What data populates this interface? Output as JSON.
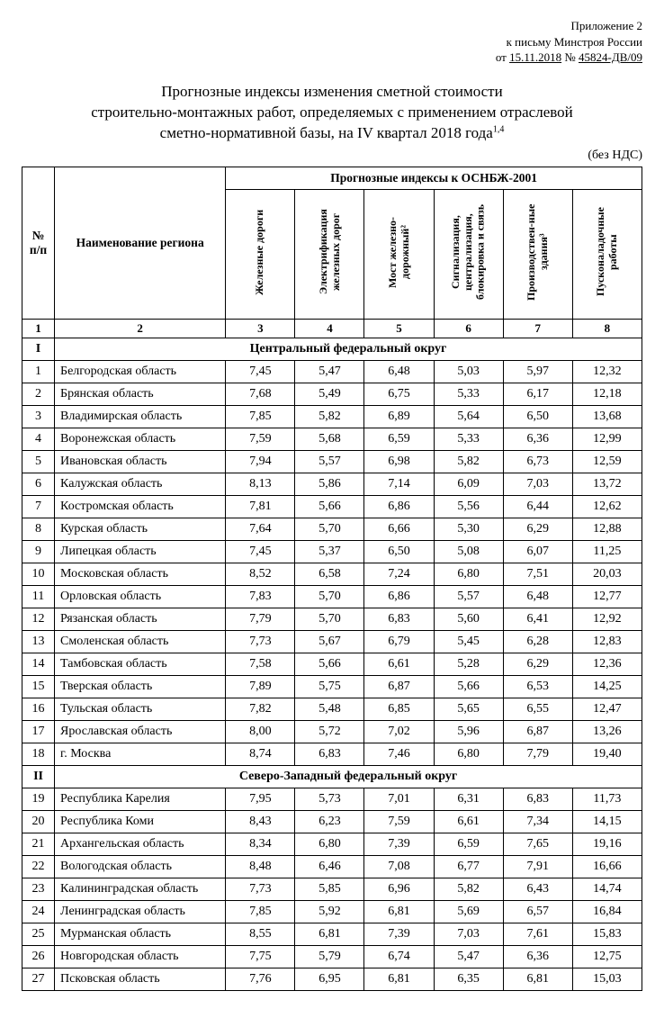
{
  "header": {
    "line1": "Приложение 2",
    "line2": "к письму Минстроя России",
    "line3_prefix": "от ",
    "line3_date": "15.11.2018",
    "line3_num_label": " № ",
    "line3_num": "45824-ДВ/09"
  },
  "title": {
    "line1": "Прогнозные индексы изменения сметной стоимости",
    "line2": "строительно-монтажных работ, определяемых с применением отраслевой",
    "line3_a": "сметно-нормативной базы, на IV квартал 2018 года",
    "line3_sup": "1,4"
  },
  "no_vat": "(без НДС)",
  "table": {
    "head": {
      "num": "№ п/п",
      "name": "Наименование региона",
      "group": "Прогнозные индексы к ОСНБЖ-2001",
      "cols": [
        "Железные дороги",
        "Электрификация железных дорог",
        "Мост железно-дорожный²",
        "Сигнализация, централизация, блокировка и связь",
        "Производствен-ные здания³",
        "Пусконаладочные работы"
      ],
      "nums": [
        "1",
        "2",
        "3",
        "4",
        "5",
        "6",
        "7",
        "8"
      ]
    },
    "sections": [
      {
        "roman": "I",
        "title": "Центральный федеральный округ",
        "rows": [
          {
            "n": "1",
            "name": "Белгородская область",
            "v": [
              "7,45",
              "5,47",
              "6,48",
              "5,03",
              "5,97",
              "12,32"
            ]
          },
          {
            "n": "2",
            "name": "Брянская область",
            "v": [
              "7,68",
              "5,49",
              "6,75",
              "5,33",
              "6,17",
              "12,18"
            ]
          },
          {
            "n": "3",
            "name": "Владимирская область",
            "v": [
              "7,85",
              "5,82",
              "6,89",
              "5,64",
              "6,50",
              "13,68"
            ]
          },
          {
            "n": "4",
            "name": "Воронежская область",
            "v": [
              "7,59",
              "5,68",
              "6,59",
              "5,33",
              "6,36",
              "12,99"
            ]
          },
          {
            "n": "5",
            "name": "Ивановская область",
            "v": [
              "7,94",
              "5,57",
              "6,98",
              "5,82",
              "6,73",
              "12,59"
            ]
          },
          {
            "n": "6",
            "name": "Калужская область",
            "v": [
              "8,13",
              "5,86",
              "7,14",
              "6,09",
              "7,03",
              "13,72"
            ]
          },
          {
            "n": "7",
            "name": "Костромская область",
            "v": [
              "7,81",
              "5,66",
              "6,86",
              "5,56",
              "6,44",
              "12,62"
            ]
          },
          {
            "n": "8",
            "name": "Курская область",
            "v": [
              "7,64",
              "5,70",
              "6,66",
              "5,30",
              "6,29",
              "12,88"
            ]
          },
          {
            "n": "9",
            "name": "Липецкая область",
            "v": [
              "7,45",
              "5,37",
              "6,50",
              "5,08",
              "6,07",
              "11,25"
            ]
          },
          {
            "n": "10",
            "name": "Московская область",
            "v": [
              "8,52",
              "6,58",
              "7,24",
              "6,80",
              "7,51",
              "20,03"
            ]
          },
          {
            "n": "11",
            "name": "Орловская область",
            "v": [
              "7,83",
              "5,70",
              "6,86",
              "5,57",
              "6,48",
              "12,77"
            ]
          },
          {
            "n": "12",
            "name": "Рязанская область",
            "v": [
              "7,79",
              "5,70",
              "6,83",
              "5,60",
              "6,41",
              "12,92"
            ]
          },
          {
            "n": "13",
            "name": "Смоленская область",
            "v": [
              "7,73",
              "5,67",
              "6,79",
              "5,45",
              "6,28",
              "12,83"
            ]
          },
          {
            "n": "14",
            "name": "Тамбовская область",
            "v": [
              "7,58",
              "5,66",
              "6,61",
              "5,28",
              "6,29",
              "12,36"
            ]
          },
          {
            "n": "15",
            "name": "Тверская область",
            "v": [
              "7,89",
              "5,75",
              "6,87",
              "5,66",
              "6,53",
              "14,25"
            ]
          },
          {
            "n": "16",
            "name": "Тульская область",
            "v": [
              "7,82",
              "5,48",
              "6,85",
              "5,65",
              "6,55",
              "12,47"
            ]
          },
          {
            "n": "17",
            "name": "Ярославская область",
            "v": [
              "8,00",
              "5,72",
              "7,02",
              "5,96",
              "6,87",
              "13,26"
            ]
          },
          {
            "n": "18",
            "name": "г. Москва",
            "v": [
              "8,74",
              "6,83",
              "7,46",
              "6,80",
              "7,79",
              "19,40"
            ]
          }
        ]
      },
      {
        "roman": "II",
        "title": "Северо-Западный федеральный округ",
        "rows": [
          {
            "n": "19",
            "name": "Республика Карелия",
            "v": [
              "7,95",
              "5,73",
              "7,01",
              "6,31",
              "6,83",
              "11,73"
            ]
          },
          {
            "n": "20",
            "name": "Республика Коми",
            "v": [
              "8,43",
              "6,23",
              "7,59",
              "6,61",
              "7,34",
              "14,15"
            ]
          },
          {
            "n": "21",
            "name": "Архангельская область",
            "v": [
              "8,34",
              "6,80",
              "7,39",
              "6,59",
              "7,65",
              "19,16"
            ]
          },
          {
            "n": "22",
            "name": "Вологодская область",
            "v": [
              "8,48",
              "6,46",
              "7,08",
              "6,77",
              "7,91",
              "16,66"
            ]
          },
          {
            "n": "23",
            "name": "Калининградская область",
            "v": [
              "7,73",
              "5,85",
              "6,96",
              "5,82",
              "6,43",
              "14,74"
            ]
          },
          {
            "n": "24",
            "name": "Ленинградская область",
            "v": [
              "7,85",
              "5,92",
              "6,81",
              "5,69",
              "6,57",
              "16,84"
            ]
          },
          {
            "n": "25",
            "name": "Мурманская область",
            "v": [
              "8,55",
              "6,81",
              "7,39",
              "7,03",
              "7,61",
              "15,83"
            ]
          },
          {
            "n": "26",
            "name": "Новгородская область",
            "v": [
              "7,75",
              "5,79",
              "6,74",
              "5,47",
              "6,36",
              "12,75"
            ]
          },
          {
            "n": "27",
            "name": "Псковская область",
            "v": [
              "7,76",
              "6,95",
              "6,81",
              "6,35",
              "6,81",
              "15,03"
            ]
          }
        ]
      }
    ]
  }
}
